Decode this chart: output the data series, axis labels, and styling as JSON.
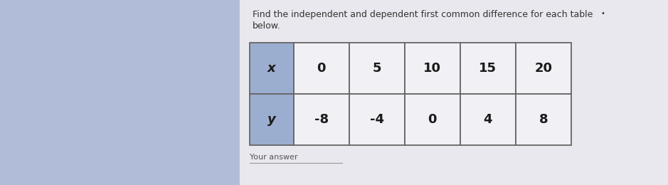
{
  "title_line1": "Find the independent and dependent first common difference for each table",
  "title_line2": "below.",
  "title_dot": "•",
  "your_answer_text": "Your answer",
  "x_label": "x",
  "y_label": "y",
  "x_values": [
    "0",
    "5",
    "10",
    "15",
    "20"
  ],
  "y_values": [
    "-8",
    "-4",
    "0",
    "4",
    "8"
  ],
  "header_bg_color": "#9baed0",
  "cell_bg_color": "#f0f0f5",
  "border_color": "#666666",
  "text_color": "#1a1a1a",
  "title_color": "#333333",
  "bg_color_left": "#b0bcd8",
  "card_bg_color": "#e8e8ee",
  "title_fontsize": 9.0,
  "cell_fontsize": 13,
  "label_fontsize": 13,
  "your_answer_fontsize": 8.0
}
